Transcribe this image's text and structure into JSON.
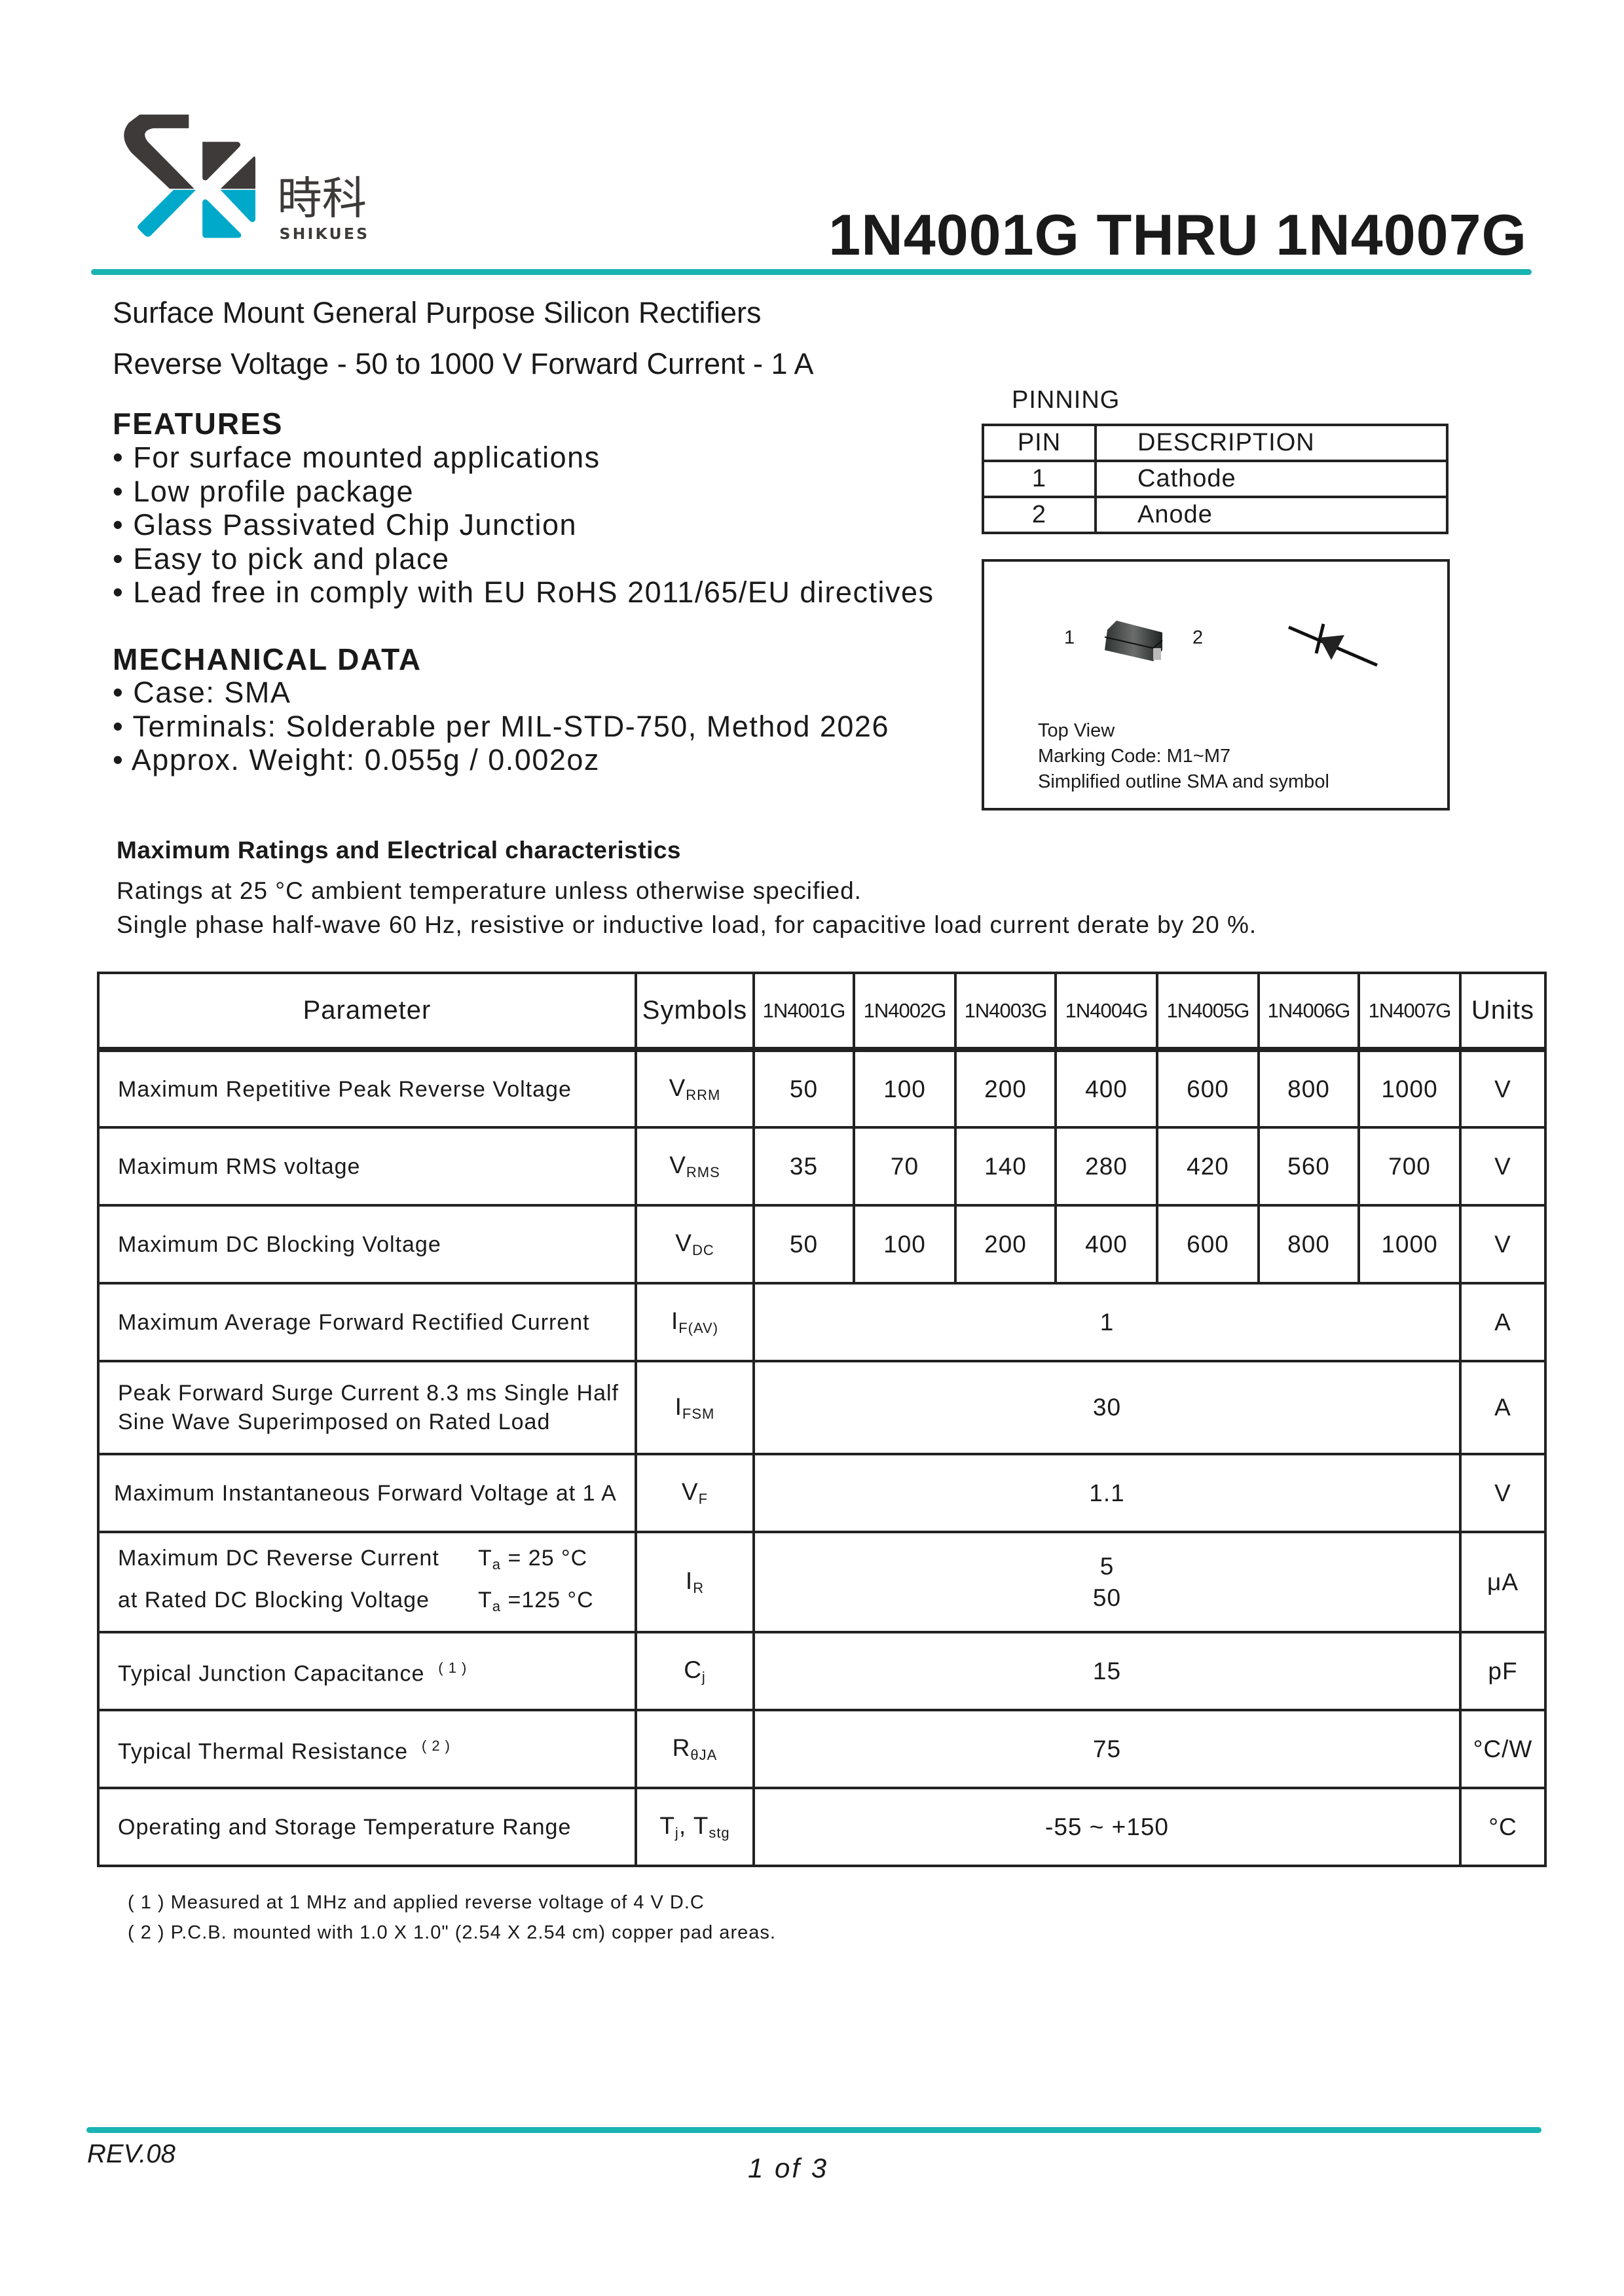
{
  "header": {
    "logo_cn": "時科",
    "logo_en": "SHIKUES",
    "title": "1N4001G THRU 1N4007G",
    "accent_color": "#1ab3b3",
    "logo_dark": "#3d3a39",
    "logo_blue": "#00a9c9"
  },
  "subtitle": {
    "line1": "Surface Mount General Purpose Silicon Rectifiers",
    "line2": "Reverse Voltage - 50 to 1000 V  Forward Current - 1 A"
  },
  "features": {
    "heading": "FEATURES",
    "items": [
      "For surface mounted applications",
      "Low profile package",
      "Glass Passivated Chip Junction",
      "Easy to pick and place",
      "Lead free in comply with EU RoHS 2011/65/EU directives"
    ]
  },
  "mechanical": {
    "heading": "MECHANICAL DATA",
    "items": [
      "Case: SMA",
      "Terminals: Solderable per MIL-STD-750, Method 2026",
      "Approx. Weight: 0.055g / 0.002oz"
    ]
  },
  "pinning": {
    "title": "PINNING",
    "headers": [
      "PIN",
      "DESCRIPTION"
    ],
    "rows": [
      [
        "1",
        "Cathode"
      ],
      [
        "2",
        "Anode"
      ]
    ]
  },
  "diagram": {
    "pin1": "1",
    "pin2": "2",
    "lines": [
      "Top View",
      "Marking Code: M1~M7",
      "Simplified outline SMA and symbol"
    ]
  },
  "ratings": {
    "heading": "Maximum Ratings and Electrical characteristics",
    "notes": [
      "Ratings at 25 °C ambient temperature unless otherwise specified.",
      "Single phase half-wave 60 Hz, resistive or inductive load, for capacitive load current derate by 20 %."
    ]
  },
  "table": {
    "headers": {
      "parameter": "Parameter",
      "symbols": "Symbols",
      "models": [
        "1N4001G",
        "1N4002G",
        "1N4003G",
        "1N4004G",
        "1N4005G",
        "1N4006G",
        "1N4007G"
      ],
      "units": "Units"
    },
    "rows": [
      {
        "param": "Maximum Repetitive Peak Reverse Voltage",
        "sym": "V",
        "sym_sub": "RRM",
        "values": [
          "50",
          "100",
          "200",
          "400",
          "600",
          "800",
          "1000"
        ],
        "unit": "V"
      },
      {
        "param": "Maximum RMS voltage",
        "sym": "V",
        "sym_sub": "RMS",
        "values": [
          "35",
          "70",
          "140",
          "280",
          "420",
          "560",
          "700"
        ],
        "unit": "V"
      },
      {
        "param": "Maximum DC Blocking Voltage",
        "sym": "V",
        "sym_sub": "DC",
        "values": [
          "50",
          "100",
          "200",
          "400",
          "600",
          "800",
          "1000"
        ],
        "unit": "V"
      },
      {
        "param": "Maximum Average Forward Rectified Current",
        "sym": "I",
        "sym_sub": "F(AV)",
        "value": "1",
        "unit": "A"
      },
      {
        "param1": "Peak Forward Surge Current 8.3 ms Single Half",
        "param2": "Sine Wave Superimposed on Rated Load",
        "sym": "I",
        "sym_sub": "FSM",
        "value": "30",
        "unit": "A"
      },
      {
        "param": "Maximum Instantaneous Forward Voltage at 1 A",
        "sym": "V",
        "sym_sub": "F",
        "value": "1.1",
        "unit": "V"
      },
      {
        "param1": "Maximum DC Reverse Current",
        "param2": "at Rated DC Blocking Voltage",
        "cond1": "T",
        "cond1_sub": "a",
        "cond1_val": " = 25 °C",
        "cond2": "T",
        "cond2_sub": "a",
        "cond2_val": " =125 °C",
        "sym": "I",
        "sym_sub": "R",
        "value1": "5",
        "value2": "50",
        "unit": "μA"
      },
      {
        "param": "Typical Junction Capacitance",
        "note": "( 1 )",
        "sym": "C",
        "sym_sub": "j",
        "value": "15",
        "unit": "pF"
      },
      {
        "param": "Typical Thermal Resistance",
        "note": "( 2 )",
        "sym": "R",
        "sym_sub": "θJA",
        "value": "75",
        "unit": "°C/W"
      },
      {
        "param": "Operating and Storage Temperature Range",
        "sym": "T",
        "sym_sub": "j",
        "sym2": ", T",
        "sym2_sub": "stg",
        "value": "-55 ~ +150",
        "unit": "°C"
      }
    ]
  },
  "footnotes": [
    "( 1 ) Measured at 1 MHz and applied reverse voltage of 4 V D.C",
    "( 2 ) P.C.B. mounted with 1.0 X 1.0\" (2.54 X 2.54 cm) copper pad areas."
  ],
  "footer": {
    "revision": "REV.08",
    "page": "1 of 3"
  }
}
